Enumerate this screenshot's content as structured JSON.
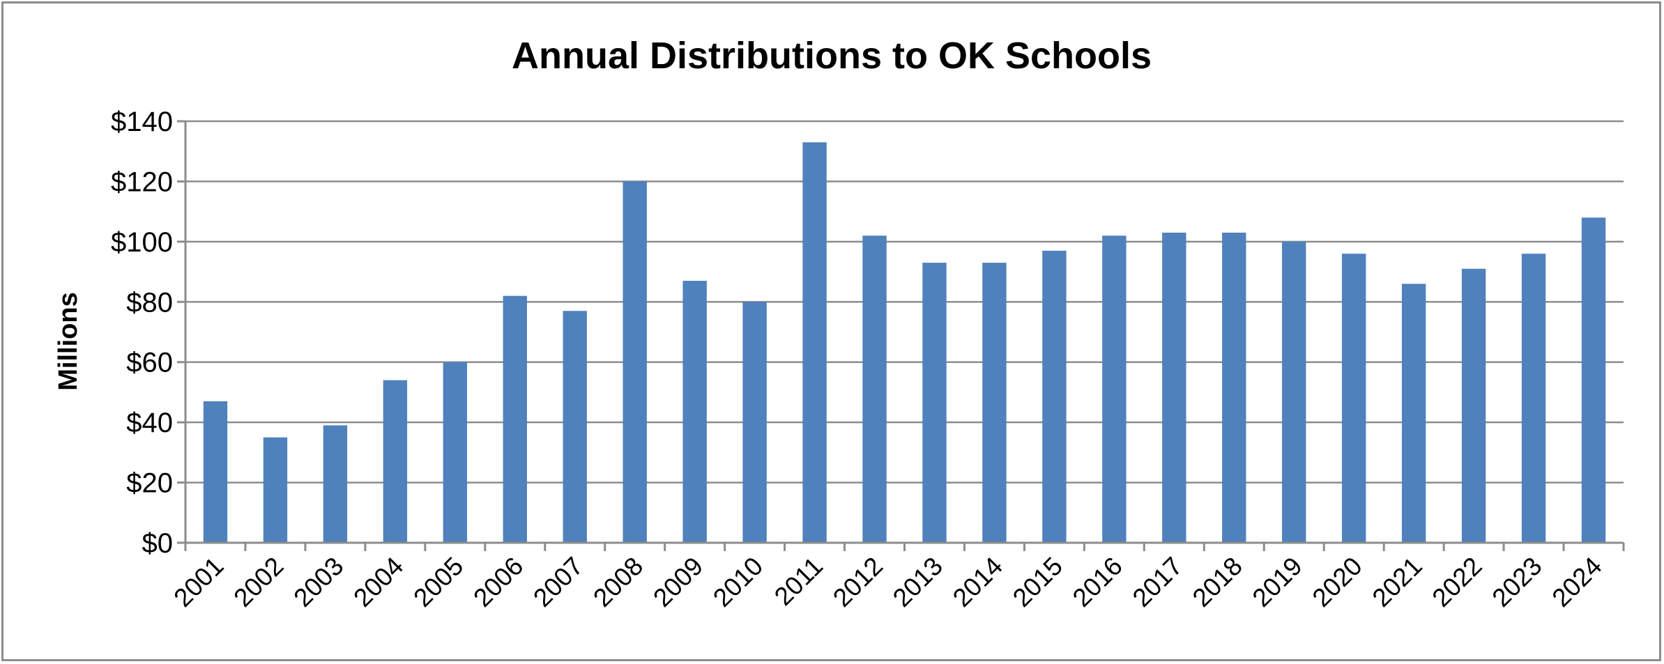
{
  "chart_data": {
    "type": "bar",
    "title": "Annual Distributions to OK Schools",
    "ylabel": "Millions",
    "xlabel": "",
    "categories": [
      "2001",
      "2002",
      "2003",
      "2004",
      "2005",
      "2006",
      "2007",
      "2008",
      "2009",
      "2010",
      "2011",
      "2012",
      "2013",
      "2014",
      "2015",
      "2016",
      "2017",
      "2018",
      "2019",
      "2020",
      "2021",
      "2022",
      "2023",
      "2024"
    ],
    "values": [
      47,
      35,
      39,
      54,
      60,
      82,
      77,
      120,
      87,
      80,
      133,
      102,
      93,
      93,
      97,
      102,
      103,
      103,
      100,
      96,
      86,
      91,
      96,
      108
    ],
    "ylim": [
      0,
      140
    ],
    "yticks": [
      0,
      20,
      40,
      60,
      80,
      100,
      120,
      140
    ],
    "ytick_labels": [
      "$0",
      "$20",
      "$40",
      "$60",
      "$80",
      "$100",
      "$120",
      "$140"
    ],
    "grid": true,
    "legend": "none",
    "bar_color": "#4f81bd"
  }
}
